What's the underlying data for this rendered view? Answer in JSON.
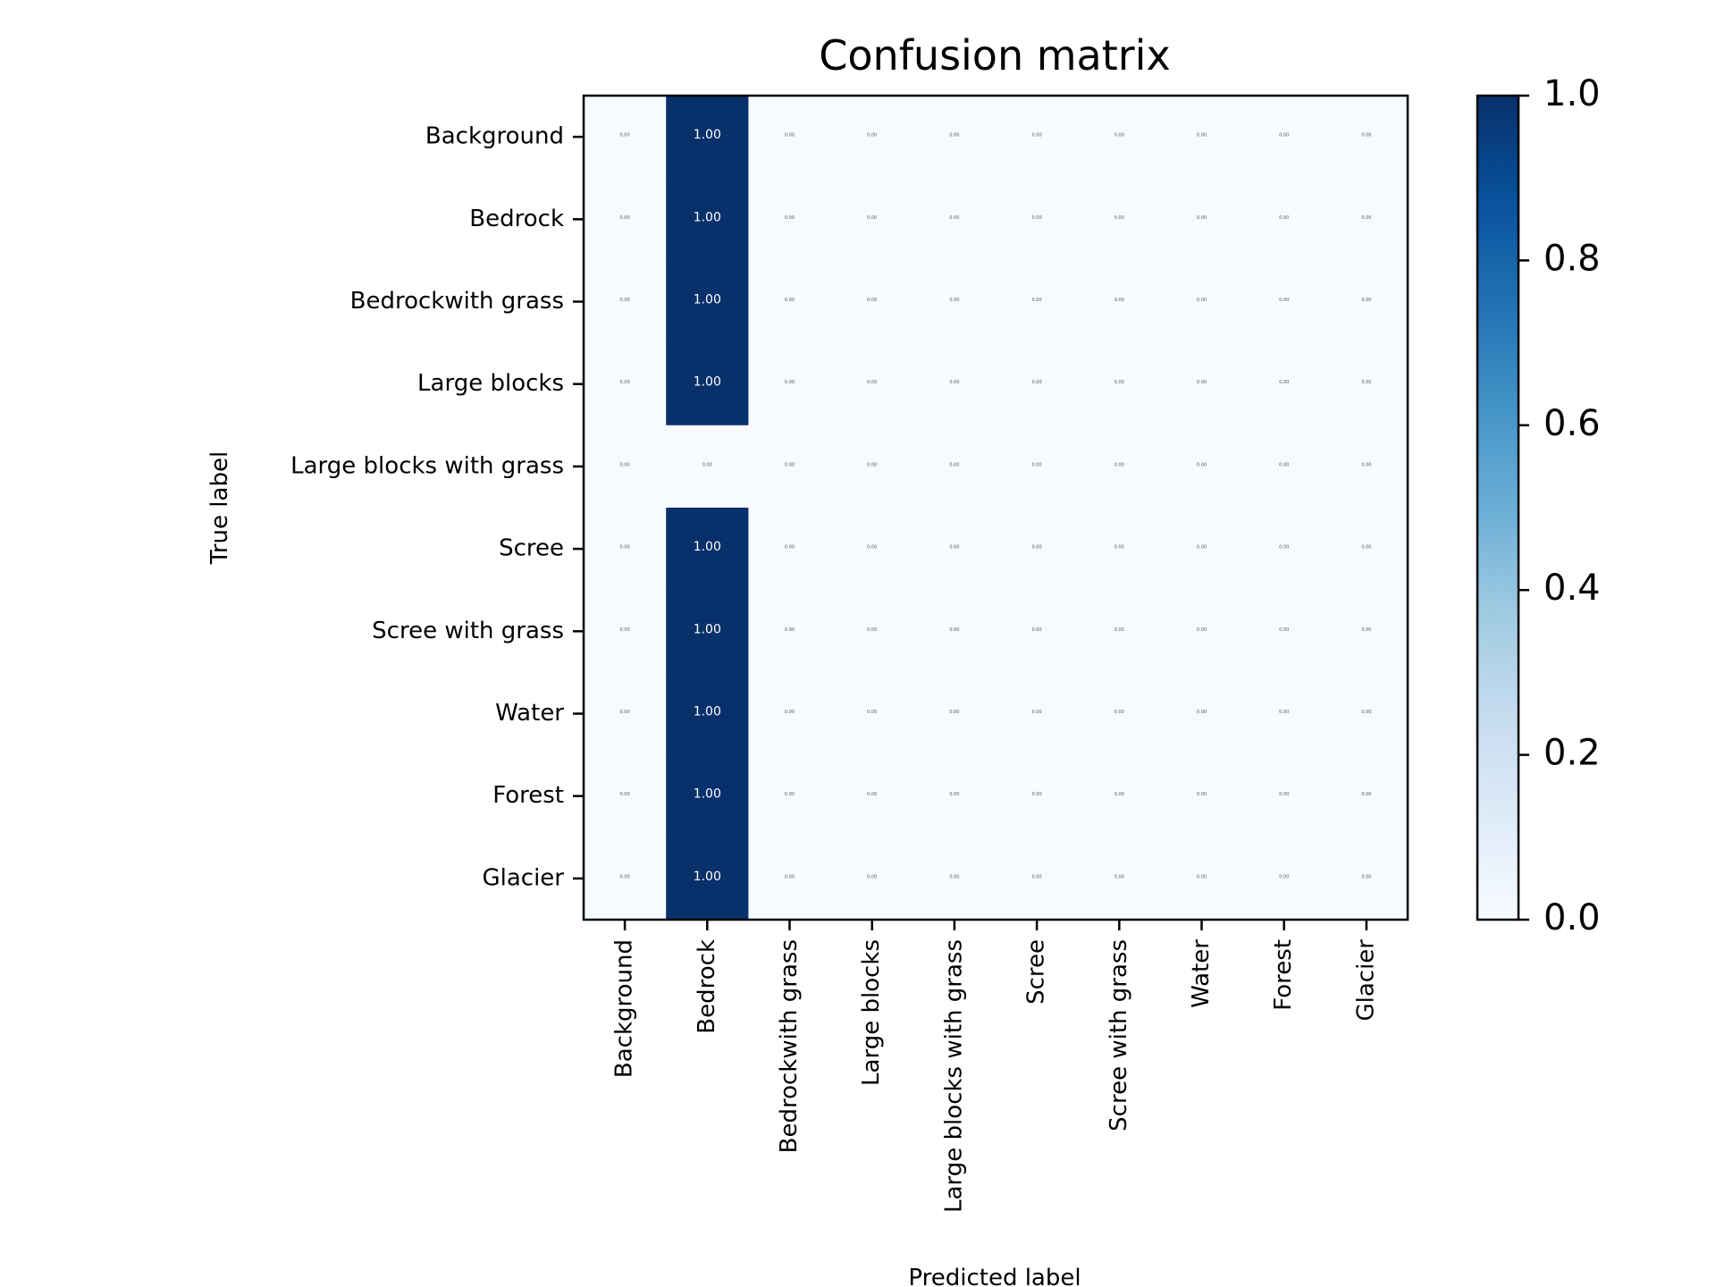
{
  "chart_data": {
    "type": "heatmap",
    "title": "Confusion matrix",
    "xlabel": "Predicted label",
    "ylabel": "True label",
    "x_categories": [
      "Background",
      "Bedrock",
      "Bedrockwith grass",
      "Large blocks",
      "Large blocks with grass",
      "Scree",
      "Scree with grass",
      "Water",
      "Forest",
      "Glacier"
    ],
    "y_categories": [
      "Background",
      "Bedrock",
      "Bedrockwith grass",
      "Large blocks",
      "Large blocks with grass",
      "Scree",
      "Scree with grass",
      "Water",
      "Forest",
      "Glacier"
    ],
    "values": [
      [
        0,
        1,
        0,
        0,
        0,
        0,
        0,
        0,
        0,
        0
      ],
      [
        0,
        1,
        0,
        0,
        0,
        0,
        0,
        0,
        0,
        0
      ],
      [
        0,
        1,
        0,
        0,
        0,
        0,
        0,
        0,
        0,
        0
      ],
      [
        0,
        1,
        0,
        0,
        0,
        0,
        0,
        0,
        0,
        0
      ],
      [
        0,
        0,
        0,
        0,
        0,
        0,
        0,
        0,
        0,
        0
      ],
      [
        0,
        1,
        0,
        0,
        0,
        0,
        0,
        0,
        0,
        0
      ],
      [
        0,
        1,
        0,
        0,
        0,
        0,
        0,
        0,
        0,
        0
      ],
      [
        0,
        1,
        0,
        0,
        0,
        0,
        0,
        0,
        0,
        0
      ],
      [
        0,
        1,
        0,
        0,
        0,
        0,
        0,
        0,
        0,
        0
      ],
      [
        0,
        1,
        0,
        0,
        0,
        0,
        0,
        0,
        0,
        0
      ]
    ],
    "value_format": "0.00",
    "colorscale": "Blues",
    "colorbar": {
      "range": [
        0.0,
        1.0
      ],
      "ticks": [
        "0.0",
        "0.2",
        "0.4",
        "0.6",
        "0.8",
        "1.0"
      ]
    },
    "grid": false,
    "legend": "colorbar-right"
  }
}
